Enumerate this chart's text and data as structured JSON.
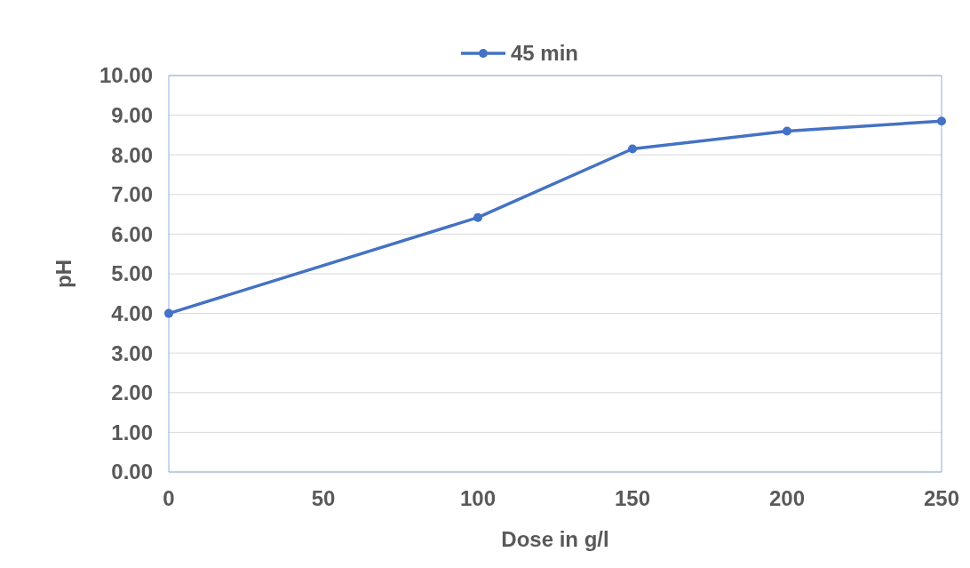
{
  "chart_data": {
    "type": "line",
    "xlabel": "Dose in g/l",
    "ylabel": "pH",
    "x": [
      0,
      100,
      150,
      200,
      250
    ],
    "series": [
      {
        "name": "45 min",
        "color": "#4472c4",
        "values": [
          4.0,
          6.42,
          8.15,
          8.6,
          8.85
        ]
      }
    ],
    "xlim": [
      0,
      250
    ],
    "xticks": [
      0,
      50,
      100,
      150,
      200,
      250
    ],
    "ylim": [
      0,
      10
    ],
    "yticks": [
      {
        "value": 0,
        "label": "0.00"
      },
      {
        "value": 1,
        "label": "1.00"
      },
      {
        "value": 2,
        "label": "2.00"
      },
      {
        "value": 3,
        "label": "3.00"
      },
      {
        "value": 4,
        "label": "4.00"
      },
      {
        "value": 5,
        "label": "5.00"
      },
      {
        "value": 6,
        "label": "6.00"
      },
      {
        "value": 7,
        "label": "7.00"
      },
      {
        "value": 8,
        "label": "8.00"
      },
      {
        "value": 9,
        "label": "9.00"
      },
      {
        "value": 10,
        "label": "10.00"
      }
    ],
    "grid": "y",
    "legend": "top",
    "marker": "circle",
    "line_style": "solid"
  }
}
